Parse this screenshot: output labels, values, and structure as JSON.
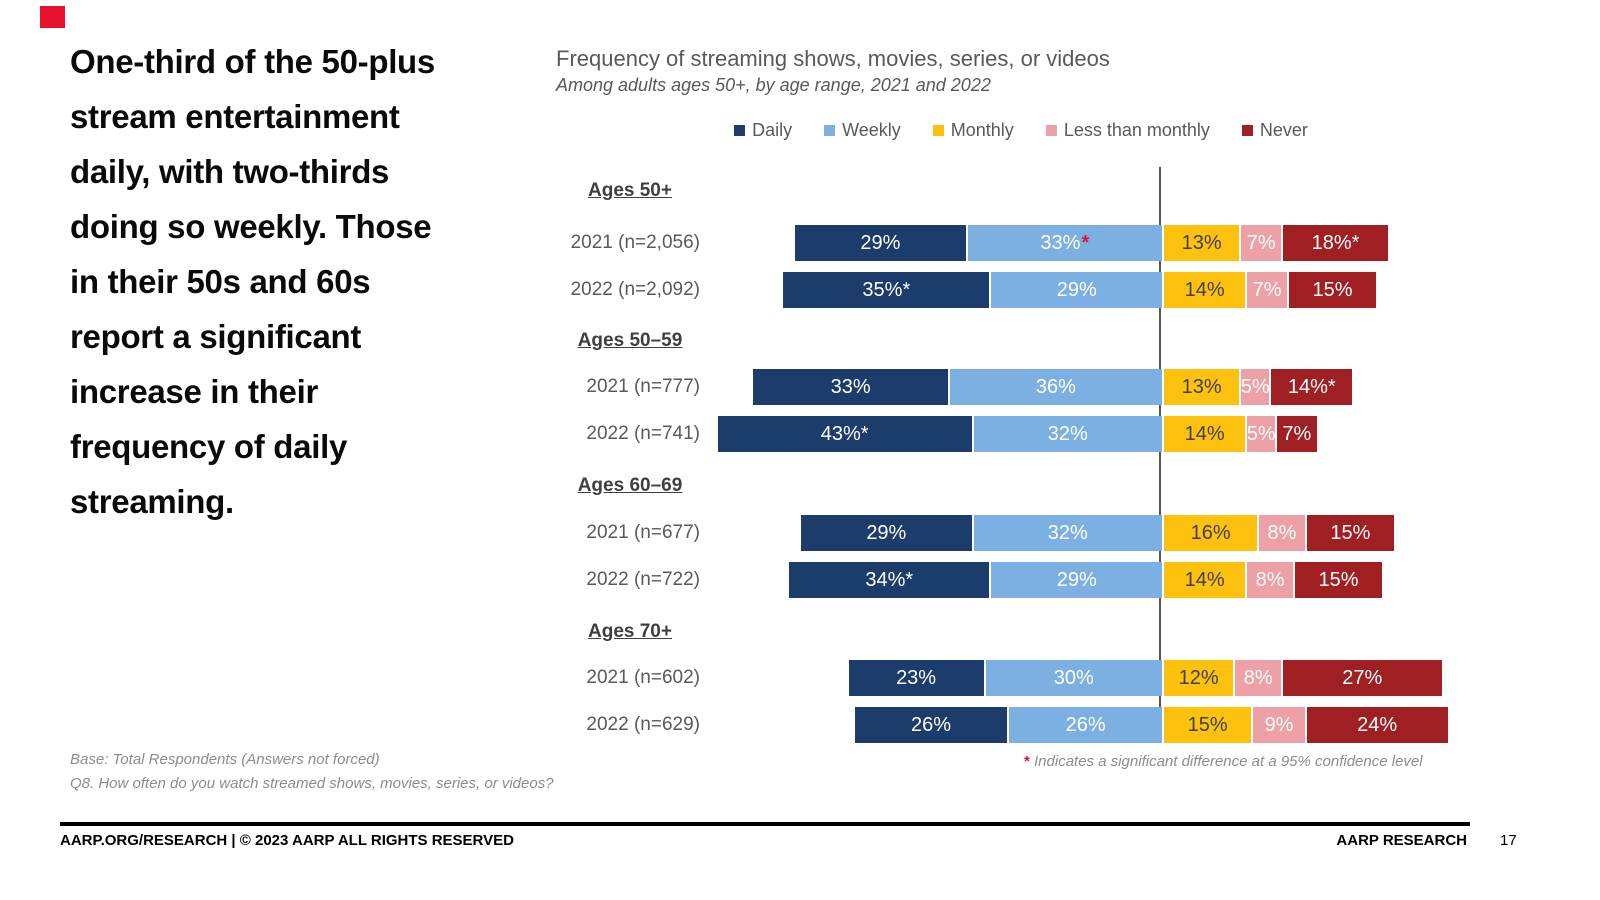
{
  "colors": {
    "accent_red": "#e8112d",
    "daily_navy": "#1c3d6b",
    "weekly_blue": "#7cb0e2",
    "monthly_yellow": "#fec10e",
    "less_than_monthly_pink": "#eda0a6",
    "never_dark_red": "#a01f23",
    "reference_line_gray": "#555555",
    "text_gray": "#595959"
  },
  "headline": "One-third of the 50-plus\nstream entertainment\ndaily, with two-thirds\ndoing so weekly. Those\nin their 50s and 60s\nreport a significant\nincrease in their\nfrequency of daily\nstreaming.",
  "chart_data": {
    "type": "bar",
    "subtype": "horizontal-stacked-100pct",
    "title": "Frequency of streaming shows, movies, series, or videos",
    "subtitle": "Among adults ages 50+, by age range, 2021 and 2022",
    "legend_position": "top",
    "series_names": [
      "Daily",
      "Weekly",
      "Monthly",
      "Less than monthly",
      "Never"
    ],
    "legend": [
      {
        "label": "Daily",
        "color": "#1c3d6b",
        "text": "#ffffff"
      },
      {
        "label": "Weekly",
        "color": "#7cb0e2",
        "text": "#ffffff"
      },
      {
        "label": "Monthly",
        "color": "#fec10e",
        "text": "#3f3f3f"
      },
      {
        "label": "Less than monthly",
        "color": "#eda0a6",
        "text": "#ffffff"
      },
      {
        "label": "Never",
        "color": "#a01f23",
        "text": "#ffffff"
      }
    ],
    "alignment_note": "Daily+Weekly segments end at a vertical reference line; Monthly, Less than monthly and Never extend right of it",
    "groups": [
      {
        "header": "Ages 50+",
        "rows": [
          {
            "label": "2021 (n=2,056)",
            "segments": [
              {
                "v": 29,
                "t": "29%"
              },
              {
                "v": 33,
                "t": "33%",
                "star": "red"
              },
              {
                "v": 13,
                "t": "13%"
              },
              {
                "v": 7,
                "t": "7%"
              },
              {
                "v": 18,
                "t": "18%*"
              }
            ]
          },
          {
            "label": "2022 (n=2,092)",
            "segments": [
              {
                "v": 35,
                "t": "35%*"
              },
              {
                "v": 29,
                "t": "29%"
              },
              {
                "v": 14,
                "t": "14%"
              },
              {
                "v": 7,
                "t": "7%"
              },
              {
                "v": 15,
                "t": "15%"
              }
            ]
          }
        ]
      },
      {
        "header": "Ages 50–59",
        "rows": [
          {
            "label": "2021 (n=777)",
            "segments": [
              {
                "v": 33,
                "t": "33%"
              },
              {
                "v": 36,
                "t": "36%"
              },
              {
                "v": 13,
                "t": "13%"
              },
              {
                "v": 5,
                "t": "5%"
              },
              {
                "v": 14,
                "t": "14%*"
              }
            ]
          },
          {
            "label": "2022 (n=741)",
            "segments": [
              {
                "v": 43,
                "t": "43%*"
              },
              {
                "v": 32,
                "t": "32%"
              },
              {
                "v": 14,
                "t": "14%"
              },
              {
                "v": 5,
                "t": "5%"
              },
              {
                "v": 7,
                "t": "7%"
              }
            ]
          }
        ]
      },
      {
        "header": "Ages 60–69",
        "rows": [
          {
            "label": "2021 (n=677)",
            "segments": [
              {
                "v": 29,
                "t": "29%"
              },
              {
                "v": 32,
                "t": "32%"
              },
              {
                "v": 16,
                "t": "16%"
              },
              {
                "v": 8,
                "t": "8%"
              },
              {
                "v": 15,
                "t": "15%"
              }
            ]
          },
          {
            "label": "2022 (n=722)",
            "segments": [
              {
                "v": 34,
                "t": "34%*"
              },
              {
                "v": 29,
                "t": "29%"
              },
              {
                "v": 14,
                "t": "14%"
              },
              {
                "v": 8,
                "t": "8%"
              },
              {
                "v": 15,
                "t": "15%"
              }
            ]
          }
        ]
      },
      {
        "header": "Ages 70+",
        "rows": [
          {
            "label": "2021 (n=602)",
            "segments": [
              {
                "v": 23,
                "t": "23%"
              },
              {
                "v": 30,
                "t": "30%"
              },
              {
                "v": 12,
                "t": "12%"
              },
              {
                "v": 8,
                "t": "8%"
              },
              {
                "v": 27,
                "t": "27%"
              }
            ]
          },
          {
            "label": "2022 (n=629)",
            "segments": [
              {
                "v": 26,
                "t": "26%"
              },
              {
                "v": 26,
                "t": "26%"
              },
              {
                "v": 15,
                "t": "15%"
              },
              {
                "v": 9,
                "t": "9%"
              },
              {
                "v": 24,
                "t": "24%"
              }
            ]
          }
        ]
      }
    ]
  },
  "notes": {
    "base": "Base: Total Respondents (Answers not forced)",
    "question": "Q8. How often do you watch streamed shows, movies, series, or videos?",
    "sig_star": "*",
    "sig_text": " Indicates a significant difference at a 95% confidence level"
  },
  "footer": {
    "left": "AARP.ORG/RESEARCH | © 2023 AARP ALL RIGHTS RESERVED",
    "right": "AARP RESEARCH",
    "page": "17"
  }
}
